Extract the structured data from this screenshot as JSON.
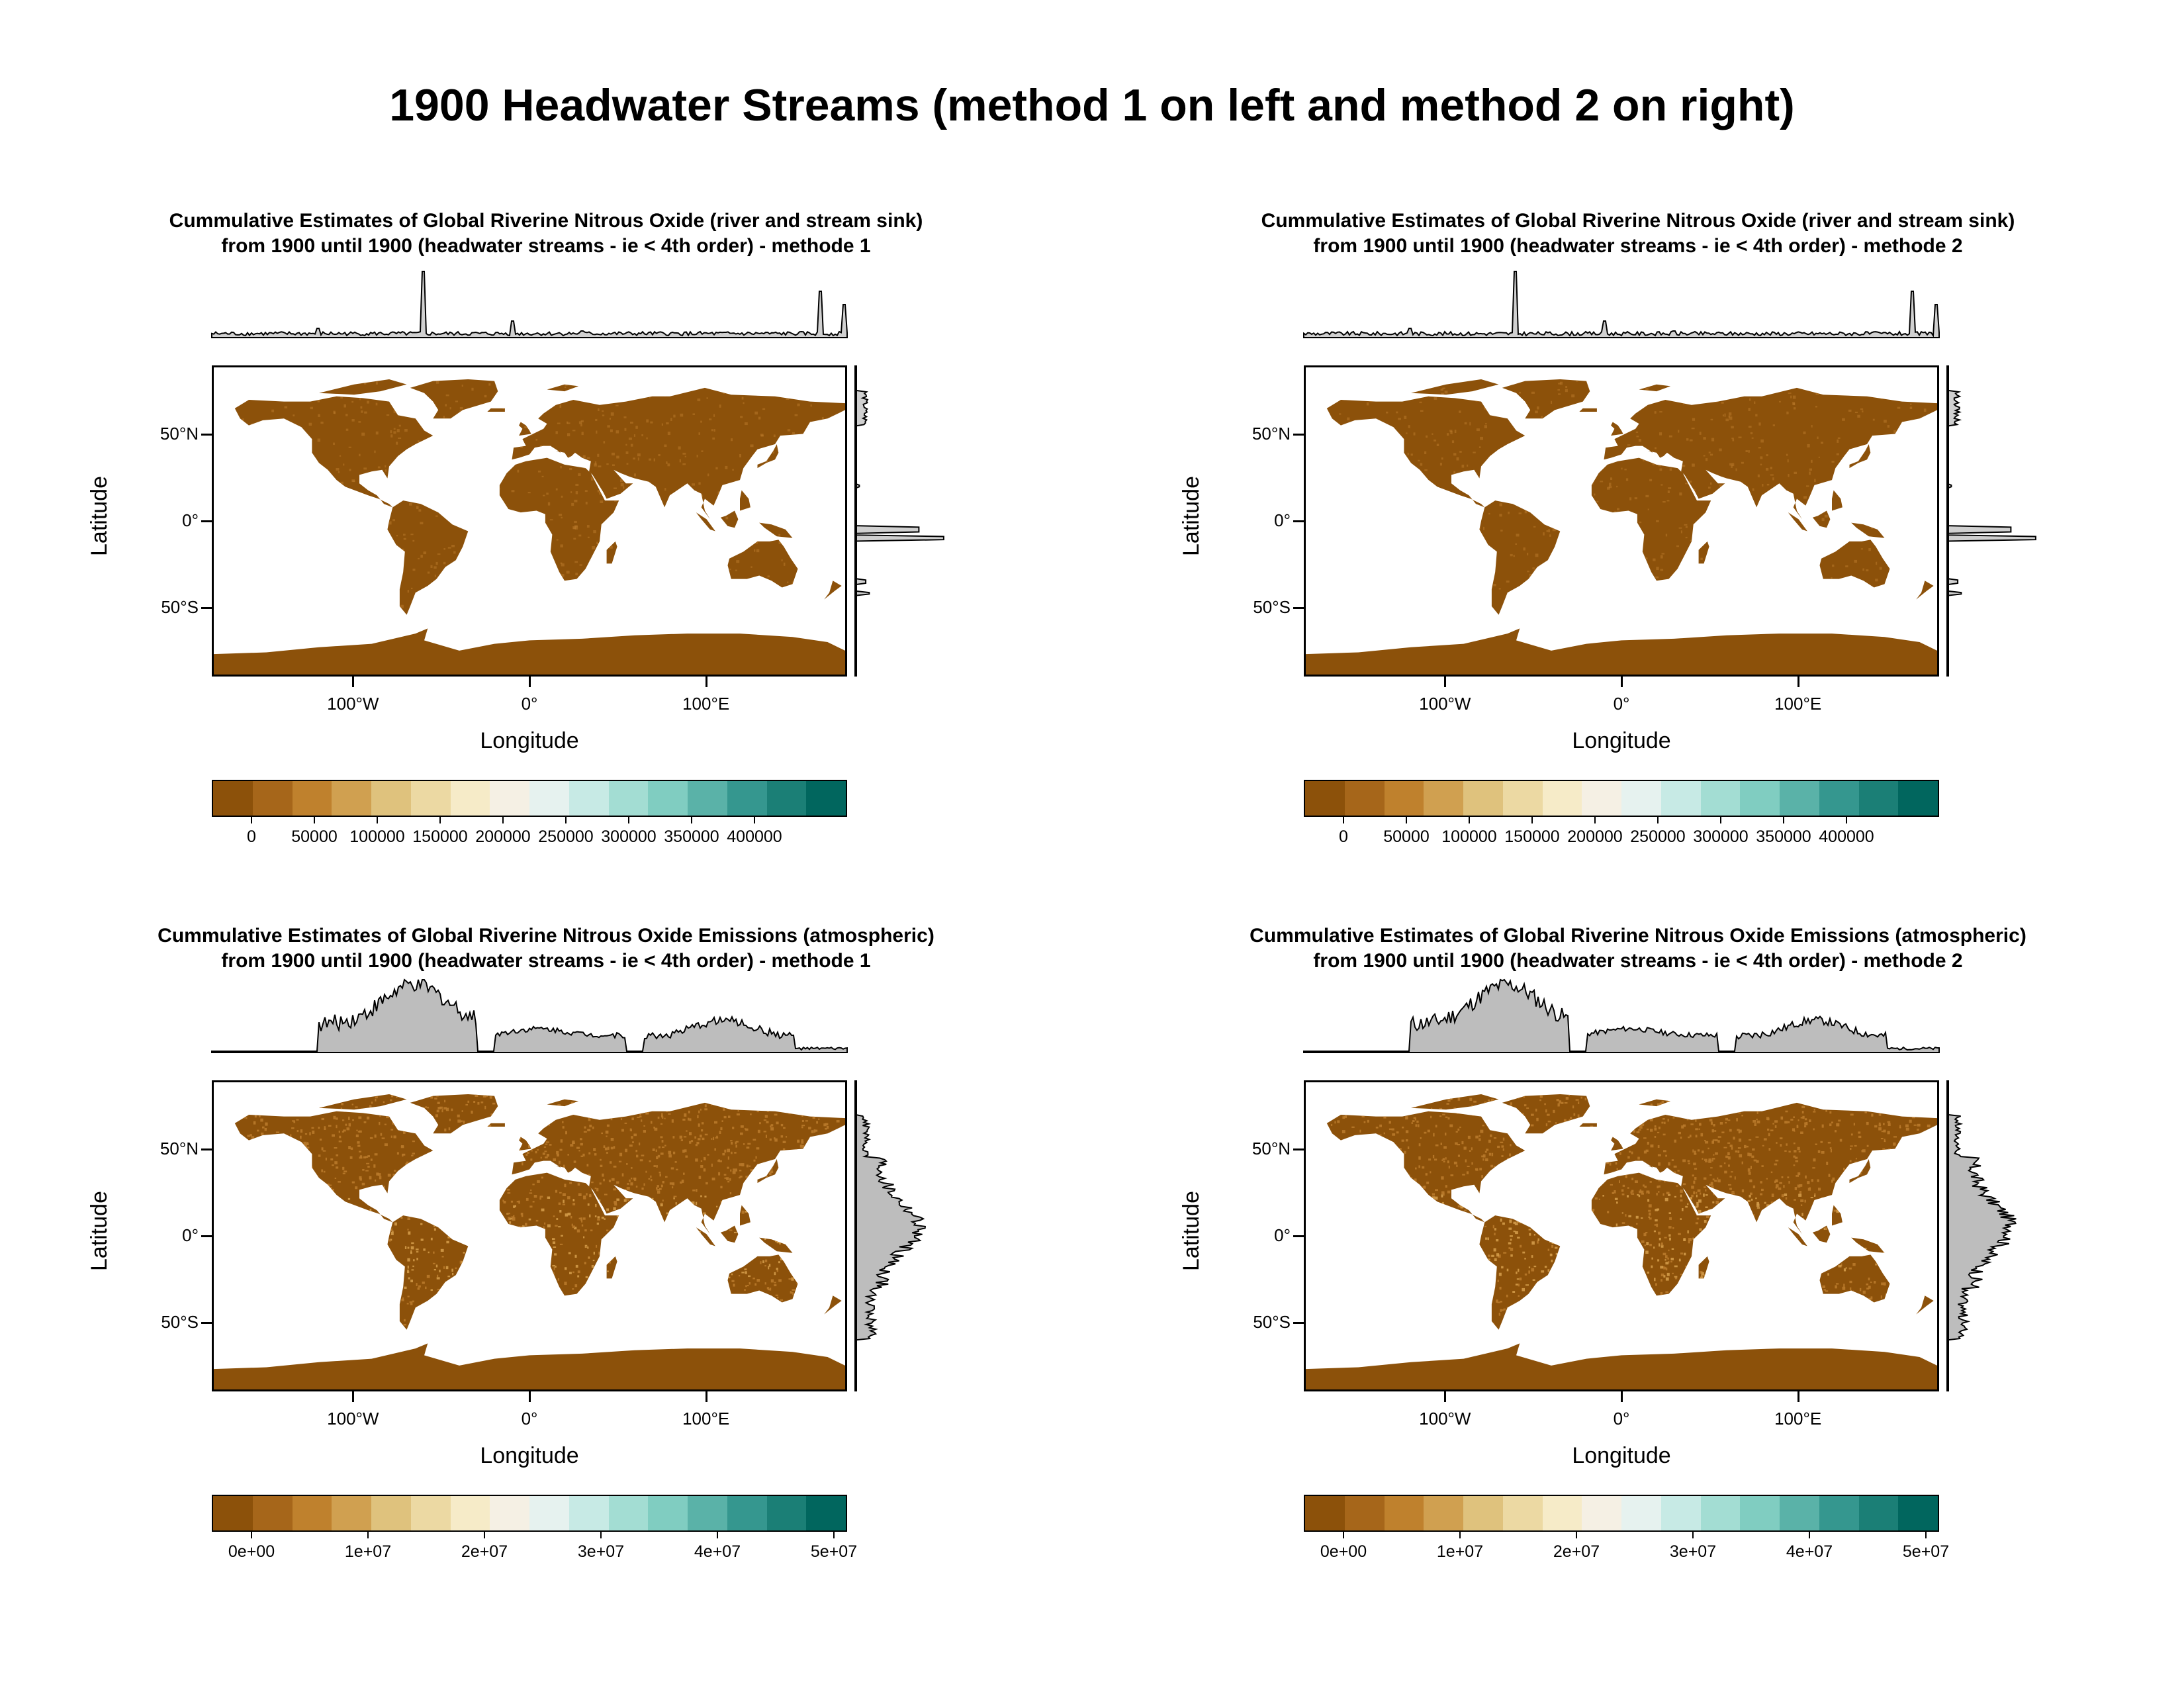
{
  "title": "1900 Headwater Streams (method 1 on left and method 2 on right)",
  "panels": [
    {
      "title_line1": "Cummulative Estimates of Global Riverine Nitrous Oxide (river and stream sink)",
      "title_line2": "from 1900 until 1900 (headwater streams - ie < 4th order) - methode 1",
      "kind": "sink",
      "colorbar_labels": [
        "0",
        "50000",
        "100000",
        "150000",
        "200000",
        "250000",
        "300000",
        "350000",
        "400000"
      ]
    },
    {
      "title_line1": "Cummulative Estimates of Global Riverine Nitrous Oxide (river and stream sink)",
      "title_line2": "from 1900 until 1900 (headwater streams - ie < 4th order) - methode 2",
      "kind": "sink",
      "colorbar_labels": [
        "0",
        "50000",
        "100000",
        "150000",
        "200000",
        "250000",
        "300000",
        "350000",
        "400000"
      ]
    },
    {
      "title_line1": "Cummulative Estimates of Global Riverine Nitrous Oxide Emissions (atmospheric)",
      "title_line2": "from 1900 until 1900 (headwater streams - ie < 4th order) - methode 1",
      "kind": "emission",
      "colorbar_labels": [
        "0e+00",
        "1e+07",
        "2e+07",
        "3e+07",
        "4e+07",
        "5e+07"
      ]
    },
    {
      "title_line1": "Cummulative Estimates of Global Riverine Nitrous Oxide Emissions (atmospheric)",
      "title_line2": "from 1900 until 1900 (headwater streams - ie < 4th order) - methode 2",
      "kind": "emission",
      "colorbar_labels": [
        "0e+00",
        "1e+07",
        "2e+07",
        "3e+07",
        "4e+07",
        "5e+07"
      ]
    }
  ],
  "axes": {
    "xlabel": "Longitude",
    "ylabel": "Latitude",
    "lon_ticks": [
      "100°W",
      "0°",
      "100°E"
    ],
    "lat_ticks": [
      "50°N",
      "0°",
      "50°S"
    ]
  },
  "colors": {
    "land": "#8c510a",
    "land_light": "#b8792a",
    "land_lighter": "#d29a48",
    "margin_fill": "#bdbdbd",
    "ramp": [
      "#8c510a",
      "#a6661a",
      "#bf812d",
      "#d0a050",
      "#dfc27d",
      "#ecd9a3",
      "#f6ebc8",
      "#f5f0e4",
      "#e6f2ef",
      "#c7eae5",
      "#a3ddd3",
      "#80cdc1",
      "#5ab2a8",
      "#35978f",
      "#1b7f76",
      "#01665e"
    ]
  }
}
